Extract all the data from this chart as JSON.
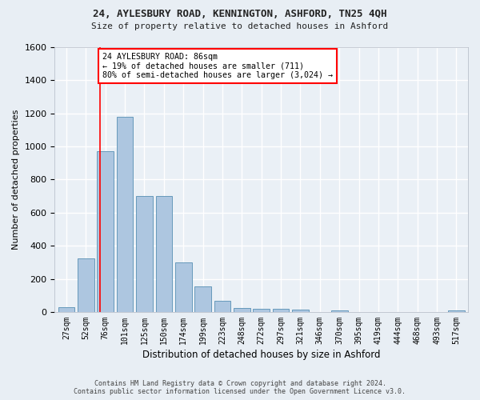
{
  "title1": "24, AYLESBURY ROAD, KENNINGTON, ASHFORD, TN25 4QH",
  "title2": "Size of property relative to detached houses in Ashford",
  "xlabel": "Distribution of detached houses by size in Ashford",
  "ylabel": "Number of detached properties",
  "categories": [
    "27sqm",
    "52sqm",
    "76sqm",
    "101sqm",
    "125sqm",
    "150sqm",
    "174sqm",
    "199sqm",
    "223sqm",
    "248sqm",
    "272sqm",
    "297sqm",
    "321sqm",
    "346sqm",
    "370sqm",
    "395sqm",
    "419sqm",
    "444sqm",
    "468sqm",
    "493sqm",
    "517sqm"
  ],
  "values": [
    30,
    325,
    970,
    1180,
    700,
    700,
    300,
    155,
    65,
    25,
    20,
    20,
    15,
    0,
    10,
    0,
    2,
    0,
    0,
    0,
    10
  ],
  "bar_color": "#adc6e0",
  "bar_edge_color": "#6699bb",
  "annotation_text_line1": "24 AYLESBURY ROAD: 86sqm",
  "annotation_text_line2": "← 19% of detached houses are smaller (711)",
  "annotation_text_line3": "80% of semi-detached houses are larger (3,024) →",
  "ylim": [
    0,
    1600
  ],
  "yticks": [
    0,
    200,
    400,
    600,
    800,
    1000,
    1200,
    1400,
    1600
  ],
  "footer1": "Contains HM Land Registry data © Crown copyright and database right 2024.",
  "footer2": "Contains public sector information licensed under the Open Government Licence v3.0.",
  "bg_color": "#e8eef4",
  "plot_bg_color": "#eaf0f6",
  "grid_color": "white"
}
